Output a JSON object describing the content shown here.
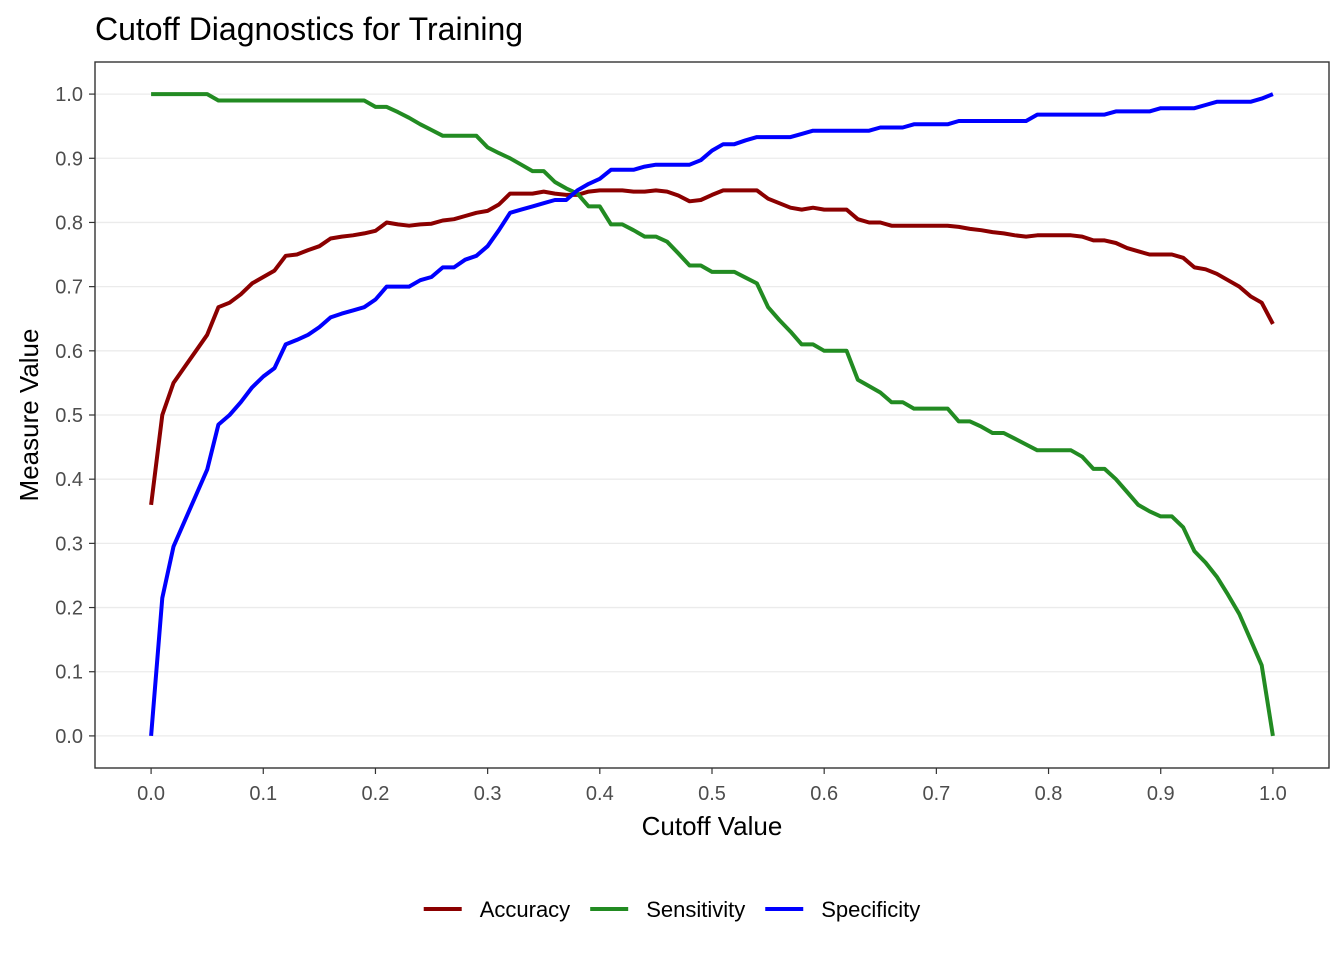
{
  "chart_data": {
    "type": "line",
    "title": "Cutoff Diagnostics for Training",
    "xlabel": "Cutoff Value",
    "ylabel": "Measure Value",
    "xlim": [
      -0.05,
      1.05
    ],
    "ylim": [
      -0.05,
      1.05
    ],
    "x_ticks": [
      0.0,
      0.1,
      0.2,
      0.3,
      0.4,
      0.5,
      0.6,
      0.7,
      0.8,
      0.9,
      1.0
    ],
    "x_tick_labels": [
      "0.0",
      "0.1",
      "0.2",
      "0.3",
      "0.4",
      "0.5",
      "0.6",
      "0.7",
      "0.8",
      "0.9",
      "1.0"
    ],
    "y_ticks": [
      0.0,
      0.1,
      0.2,
      0.3,
      0.4,
      0.5,
      0.6,
      0.7,
      0.8,
      0.9,
      1.0
    ],
    "y_tick_labels": [
      "0.0",
      "0.1",
      "0.2",
      "0.3",
      "0.4",
      "0.5",
      "0.6",
      "0.7",
      "0.8",
      "0.9",
      "1.0"
    ],
    "grid": "horizontal",
    "legend_position": "bottom",
    "series": [
      {
        "name": "Accuracy",
        "color": "#8b0000",
        "points": [
          [
            0.0,
            0.36
          ],
          [
            0.01,
            0.5
          ],
          [
            0.02,
            0.55
          ],
          [
            0.03,
            0.575
          ],
          [
            0.04,
            0.6
          ],
          [
            0.05,
            0.625
          ],
          [
            0.06,
            0.668
          ],
          [
            0.07,
            0.675
          ],
          [
            0.08,
            0.688
          ],
          [
            0.09,
            0.705
          ],
          [
            0.1,
            0.715
          ],
          [
            0.11,
            0.725
          ],
          [
            0.12,
            0.748
          ],
          [
            0.13,
            0.75
          ],
          [
            0.14,
            0.757
          ],
          [
            0.15,
            0.763
          ],
          [
            0.16,
            0.775
          ],
          [
            0.17,
            0.778
          ],
          [
            0.18,
            0.78
          ],
          [
            0.19,
            0.783
          ],
          [
            0.2,
            0.787
          ],
          [
            0.21,
            0.8
          ],
          [
            0.22,
            0.797
          ],
          [
            0.23,
            0.795
          ],
          [
            0.24,
            0.797
          ],
          [
            0.25,
            0.798
          ],
          [
            0.26,
            0.803
          ],
          [
            0.27,
            0.805
          ],
          [
            0.28,
            0.81
          ],
          [
            0.29,
            0.815
          ],
          [
            0.3,
            0.818
          ],
          [
            0.31,
            0.828
          ],
          [
            0.32,
            0.845
          ],
          [
            0.33,
            0.845
          ],
          [
            0.34,
            0.845
          ],
          [
            0.35,
            0.848
          ],
          [
            0.36,
            0.845
          ],
          [
            0.37,
            0.843
          ],
          [
            0.38,
            0.843
          ],
          [
            0.39,
            0.848
          ],
          [
            0.4,
            0.85
          ],
          [
            0.41,
            0.85
          ],
          [
            0.42,
            0.85
          ],
          [
            0.43,
            0.848
          ],
          [
            0.44,
            0.848
          ],
          [
            0.45,
            0.85
          ],
          [
            0.46,
            0.848
          ],
          [
            0.47,
            0.842
          ],
          [
            0.48,
            0.833
          ],
          [
            0.49,
            0.835
          ],
          [
            0.5,
            0.843
          ],
          [
            0.51,
            0.85
          ],
          [
            0.52,
            0.85
          ],
          [
            0.53,
            0.85
          ],
          [
            0.54,
            0.85
          ],
          [
            0.55,
            0.837
          ],
          [
            0.56,
            0.83
          ],
          [
            0.57,
            0.823
          ],
          [
            0.58,
            0.82
          ],
          [
            0.59,
            0.823
          ],
          [
            0.6,
            0.82
          ],
          [
            0.61,
            0.82
          ],
          [
            0.62,
            0.82
          ],
          [
            0.63,
            0.805
          ],
          [
            0.64,
            0.8
          ],
          [
            0.65,
            0.8
          ],
          [
            0.66,
            0.795
          ],
          [
            0.67,
            0.795
          ],
          [
            0.68,
            0.795
          ],
          [
            0.69,
            0.795
          ],
          [
            0.7,
            0.795
          ],
          [
            0.71,
            0.795
          ],
          [
            0.72,
            0.793
          ],
          [
            0.73,
            0.79
          ],
          [
            0.74,
            0.788
          ],
          [
            0.75,
            0.785
          ],
          [
            0.76,
            0.783
          ],
          [
            0.77,
            0.78
          ],
          [
            0.78,
            0.778
          ],
          [
            0.79,
            0.78
          ],
          [
            0.8,
            0.78
          ],
          [
            0.81,
            0.78
          ],
          [
            0.82,
            0.78
          ],
          [
            0.83,
            0.778
          ],
          [
            0.84,
            0.772
          ],
          [
            0.85,
            0.772
          ],
          [
            0.86,
            0.768
          ],
          [
            0.87,
            0.76
          ],
          [
            0.88,
            0.755
          ],
          [
            0.89,
            0.75
          ],
          [
            0.9,
            0.75
          ],
          [
            0.91,
            0.75
          ],
          [
            0.92,
            0.745
          ],
          [
            0.93,
            0.73
          ],
          [
            0.94,
            0.727
          ],
          [
            0.95,
            0.72
          ],
          [
            0.96,
            0.71
          ],
          [
            0.97,
            0.7
          ],
          [
            0.98,
            0.685
          ],
          [
            0.99,
            0.675
          ],
          [
            1.0,
            0.642
          ]
        ]
      },
      {
        "name": "Sensitivity",
        "color": "#228b22",
        "points": [
          [
            0.0,
            1.0
          ],
          [
            0.01,
            1.0
          ],
          [
            0.02,
            1.0
          ],
          [
            0.03,
            1.0
          ],
          [
            0.04,
            1.0
          ],
          [
            0.05,
            1.0
          ],
          [
            0.06,
            0.99
          ],
          [
            0.07,
            0.99
          ],
          [
            0.08,
            0.99
          ],
          [
            0.09,
            0.99
          ],
          [
            0.1,
            0.99
          ],
          [
            0.11,
            0.99
          ],
          [
            0.12,
            0.99
          ],
          [
            0.13,
            0.99
          ],
          [
            0.14,
            0.99
          ],
          [
            0.15,
            0.99
          ],
          [
            0.16,
            0.99
          ],
          [
            0.17,
            0.99
          ],
          [
            0.18,
            0.99
          ],
          [
            0.19,
            0.99
          ],
          [
            0.2,
            0.98
          ],
          [
            0.21,
            0.98
          ],
          [
            0.22,
            0.972
          ],
          [
            0.23,
            0.963
          ],
          [
            0.24,
            0.953
          ],
          [
            0.25,
            0.944
          ],
          [
            0.26,
            0.935
          ],
          [
            0.27,
            0.935
          ],
          [
            0.28,
            0.935
          ],
          [
            0.29,
            0.935
          ],
          [
            0.3,
            0.917
          ],
          [
            0.31,
            0.908
          ],
          [
            0.32,
            0.9
          ],
          [
            0.33,
            0.89
          ],
          [
            0.34,
            0.88
          ],
          [
            0.35,
            0.88
          ],
          [
            0.36,
            0.863
          ],
          [
            0.37,
            0.853
          ],
          [
            0.38,
            0.845
          ],
          [
            0.39,
            0.825
          ],
          [
            0.4,
            0.825
          ],
          [
            0.41,
            0.797
          ],
          [
            0.42,
            0.797
          ],
          [
            0.43,
            0.788
          ],
          [
            0.44,
            0.778
          ],
          [
            0.45,
            0.778
          ],
          [
            0.46,
            0.77
          ],
          [
            0.47,
            0.752
          ],
          [
            0.48,
            0.733
          ],
          [
            0.49,
            0.733
          ],
          [
            0.5,
            0.723
          ],
          [
            0.51,
            0.723
          ],
          [
            0.52,
            0.723
          ],
          [
            0.53,
            0.714
          ],
          [
            0.54,
            0.705
          ],
          [
            0.55,
            0.668
          ],
          [
            0.56,
            0.648
          ],
          [
            0.57,
            0.63
          ],
          [
            0.58,
            0.61
          ],
          [
            0.59,
            0.61
          ],
          [
            0.6,
            0.6
          ],
          [
            0.61,
            0.6
          ],
          [
            0.62,
            0.6
          ],
          [
            0.63,
            0.555
          ],
          [
            0.64,
            0.545
          ],
          [
            0.65,
            0.535
          ],
          [
            0.66,
            0.52
          ],
          [
            0.67,
            0.52
          ],
          [
            0.68,
            0.51
          ],
          [
            0.69,
            0.51
          ],
          [
            0.7,
            0.51
          ],
          [
            0.71,
            0.51
          ],
          [
            0.72,
            0.49
          ],
          [
            0.73,
            0.49
          ],
          [
            0.74,
            0.482
          ],
          [
            0.75,
            0.472
          ],
          [
            0.76,
            0.472
          ],
          [
            0.77,
            0.463
          ],
          [
            0.78,
            0.454
          ],
          [
            0.79,
            0.445
          ],
          [
            0.8,
            0.445
          ],
          [
            0.81,
            0.445
          ],
          [
            0.82,
            0.445
          ],
          [
            0.83,
            0.435
          ],
          [
            0.84,
            0.416
          ],
          [
            0.85,
            0.416
          ],
          [
            0.86,
            0.4
          ],
          [
            0.87,
            0.38
          ],
          [
            0.88,
            0.36
          ],
          [
            0.89,
            0.35
          ],
          [
            0.9,
            0.342
          ],
          [
            0.91,
            0.342
          ],
          [
            0.92,
            0.325
          ],
          [
            0.93,
            0.288
          ],
          [
            0.94,
            0.27
          ],
          [
            0.95,
            0.248
          ],
          [
            0.96,
            0.22
          ],
          [
            0.97,
            0.19
          ],
          [
            0.98,
            0.15
          ],
          [
            0.99,
            0.11
          ],
          [
            1.0,
            0.0
          ]
        ]
      },
      {
        "name": "Specificity",
        "color": "#0000ff",
        "points": [
          [
            0.0,
            0.0
          ],
          [
            0.01,
            0.215
          ],
          [
            0.02,
            0.295
          ],
          [
            0.03,
            0.335
          ],
          [
            0.04,
            0.375
          ],
          [
            0.05,
            0.415
          ],
          [
            0.06,
            0.485
          ],
          [
            0.07,
            0.5
          ],
          [
            0.08,
            0.52
          ],
          [
            0.09,
            0.543
          ],
          [
            0.1,
            0.56
          ],
          [
            0.11,
            0.573
          ],
          [
            0.12,
            0.61
          ],
          [
            0.13,
            0.617
          ],
          [
            0.14,
            0.625
          ],
          [
            0.15,
            0.637
          ],
          [
            0.16,
            0.652
          ],
          [
            0.17,
            0.658
          ],
          [
            0.18,
            0.663
          ],
          [
            0.19,
            0.668
          ],
          [
            0.2,
            0.68
          ],
          [
            0.21,
            0.7
          ],
          [
            0.22,
            0.7
          ],
          [
            0.23,
            0.7
          ],
          [
            0.24,
            0.71
          ],
          [
            0.25,
            0.715
          ],
          [
            0.26,
            0.73
          ],
          [
            0.27,
            0.73
          ],
          [
            0.28,
            0.742
          ],
          [
            0.29,
            0.748
          ],
          [
            0.3,
            0.763
          ],
          [
            0.31,
            0.788
          ],
          [
            0.32,
            0.815
          ],
          [
            0.33,
            0.82
          ],
          [
            0.34,
            0.825
          ],
          [
            0.35,
            0.83
          ],
          [
            0.36,
            0.835
          ],
          [
            0.37,
            0.835
          ],
          [
            0.38,
            0.85
          ],
          [
            0.39,
            0.86
          ],
          [
            0.4,
            0.868
          ],
          [
            0.41,
            0.882
          ],
          [
            0.42,
            0.882
          ],
          [
            0.43,
            0.882
          ],
          [
            0.44,
            0.887
          ],
          [
            0.45,
            0.89
          ],
          [
            0.46,
            0.89
          ],
          [
            0.47,
            0.89
          ],
          [
            0.48,
            0.89
          ],
          [
            0.49,
            0.897
          ],
          [
            0.5,
            0.912
          ],
          [
            0.51,
            0.922
          ],
          [
            0.52,
            0.922
          ],
          [
            0.53,
            0.928
          ],
          [
            0.54,
            0.933
          ],
          [
            0.55,
            0.933
          ],
          [
            0.56,
            0.933
          ],
          [
            0.57,
            0.933
          ],
          [
            0.58,
            0.938
          ],
          [
            0.59,
            0.943
          ],
          [
            0.6,
            0.943
          ],
          [
            0.61,
            0.943
          ],
          [
            0.62,
            0.943
          ],
          [
            0.63,
            0.943
          ],
          [
            0.64,
            0.943
          ],
          [
            0.65,
            0.948
          ],
          [
            0.66,
            0.948
          ],
          [
            0.67,
            0.948
          ],
          [
            0.68,
            0.953
          ],
          [
            0.69,
            0.953
          ],
          [
            0.7,
            0.953
          ],
          [
            0.71,
            0.953
          ],
          [
            0.72,
            0.958
          ],
          [
            0.73,
            0.958
          ],
          [
            0.74,
            0.958
          ],
          [
            0.75,
            0.958
          ],
          [
            0.76,
            0.958
          ],
          [
            0.77,
            0.958
          ],
          [
            0.78,
            0.958
          ],
          [
            0.79,
            0.968
          ],
          [
            0.8,
            0.968
          ],
          [
            0.81,
            0.968
          ],
          [
            0.82,
            0.968
          ],
          [
            0.83,
            0.968
          ],
          [
            0.84,
            0.968
          ],
          [
            0.85,
            0.968
          ],
          [
            0.86,
            0.973
          ],
          [
            0.87,
            0.973
          ],
          [
            0.88,
            0.973
          ],
          [
            0.89,
            0.973
          ],
          [
            0.9,
            0.978
          ],
          [
            0.91,
            0.978
          ],
          [
            0.92,
            0.978
          ],
          [
            0.93,
            0.978
          ],
          [
            0.94,
            0.983
          ],
          [
            0.95,
            0.988
          ],
          [
            0.96,
            0.988
          ],
          [
            0.97,
            0.988
          ],
          [
            0.98,
            0.988
          ],
          [
            0.99,
            0.993
          ],
          [
            1.0,
            1.0
          ]
        ]
      }
    ]
  }
}
